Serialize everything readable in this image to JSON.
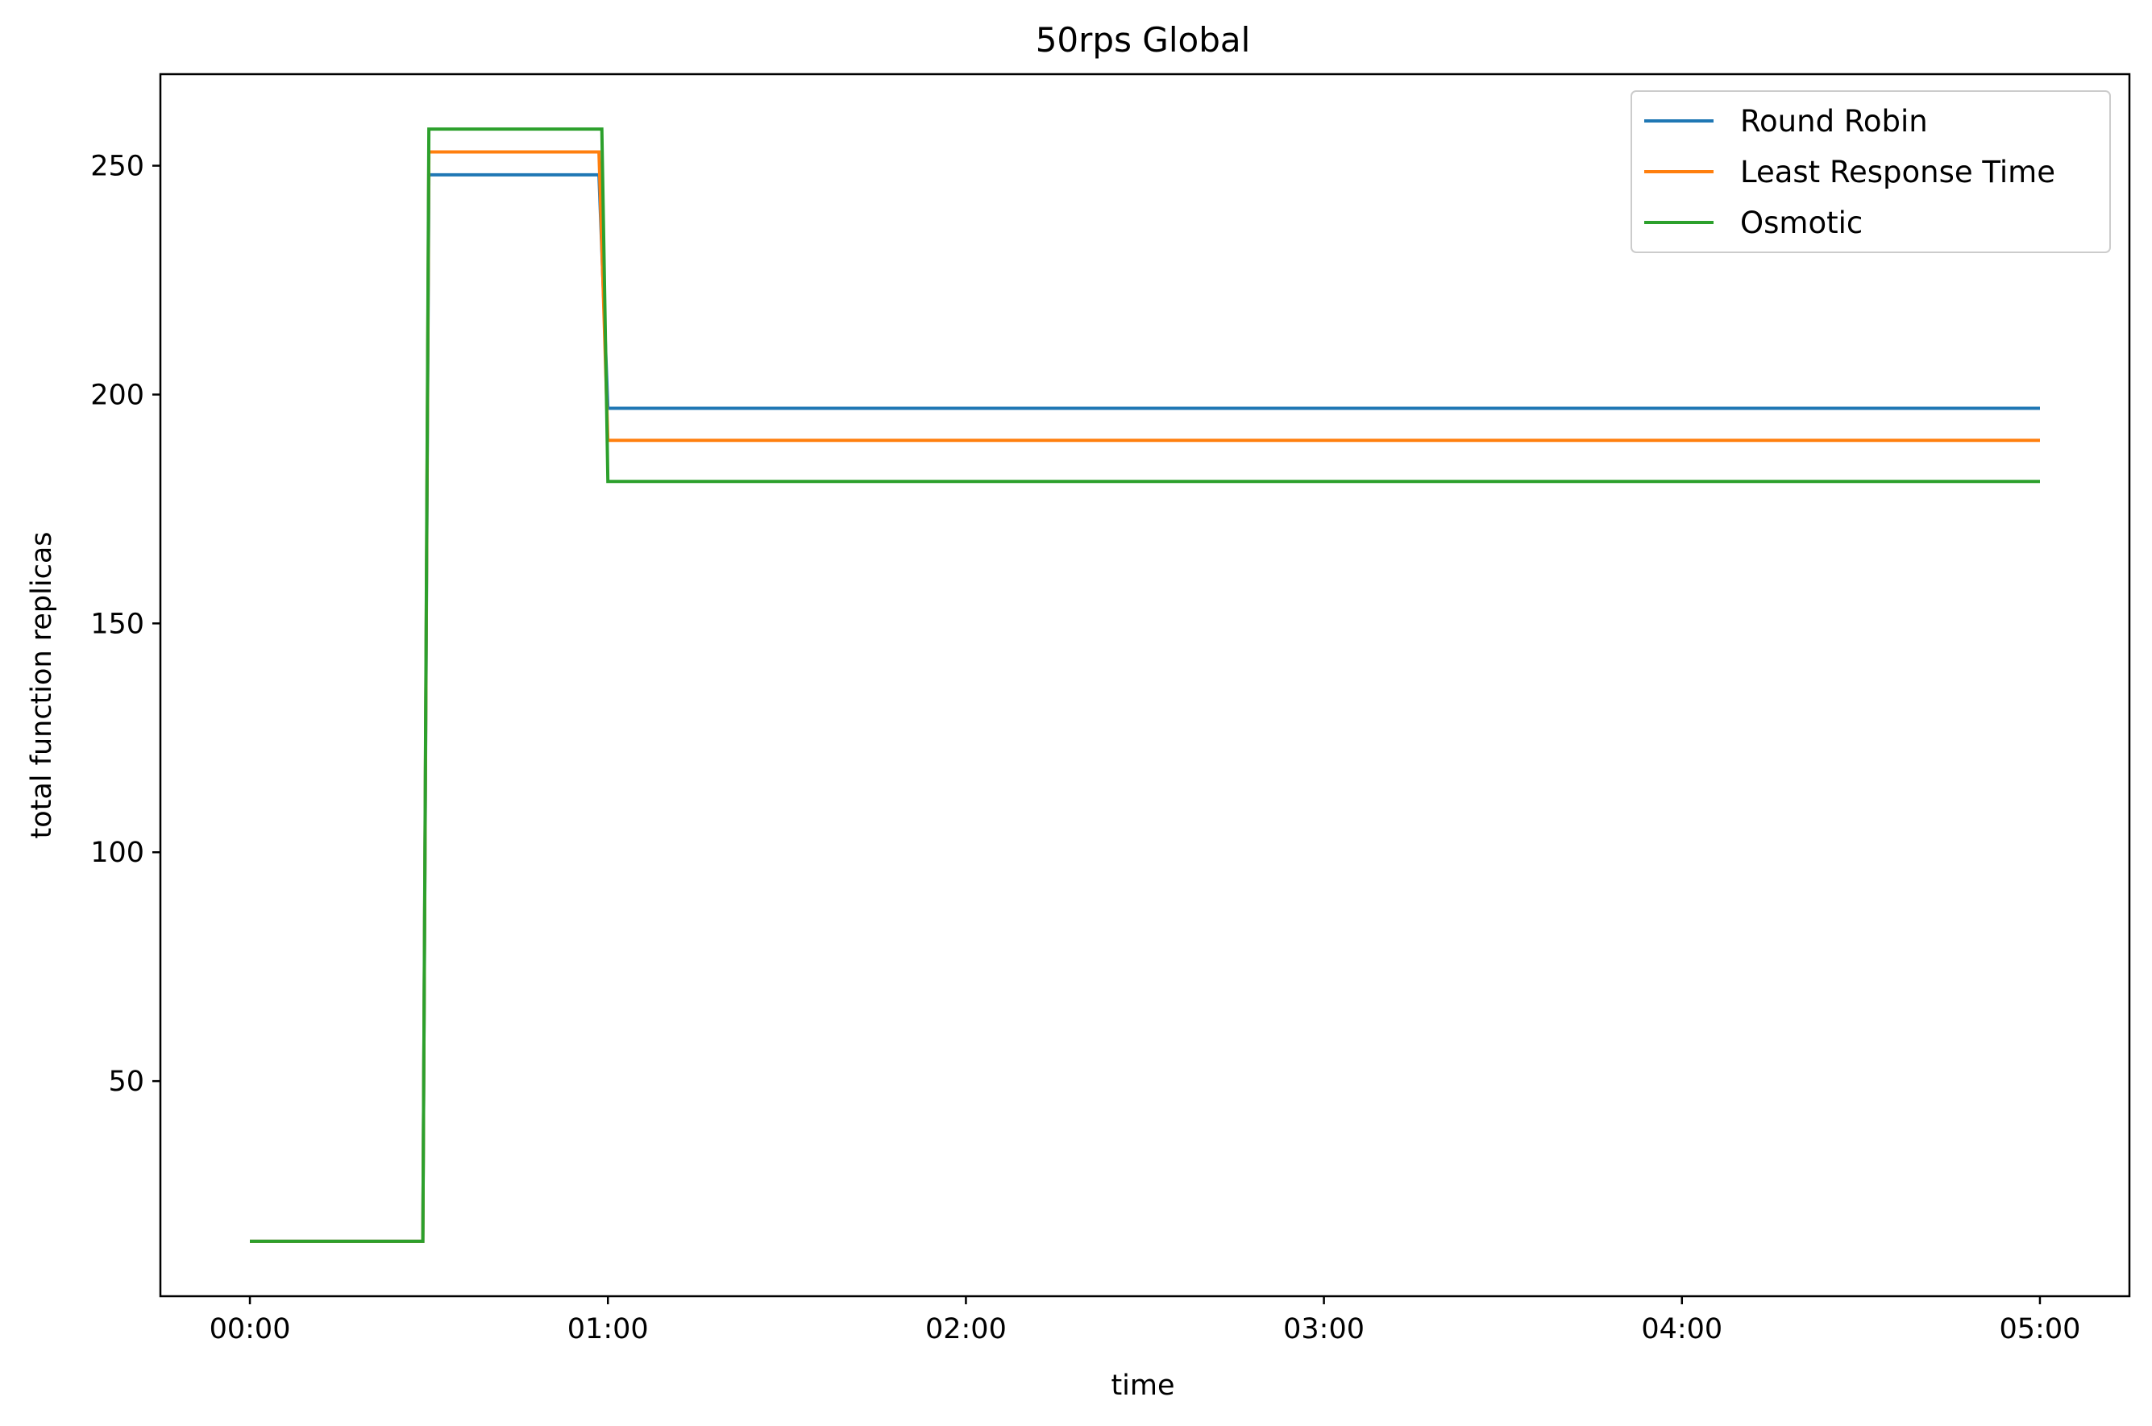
{
  "chart_data": {
    "type": "line",
    "title": "50rps Global",
    "xlabel": "time",
    "ylabel": "total function replicas",
    "x_unit": "minutes",
    "xlim": [
      -0.25,
      5.25
    ],
    "ylim": [
      3,
      270
    ],
    "x_ticks": [
      {
        "value": 0,
        "label": "00:00"
      },
      {
        "value": 1,
        "label": "01:00"
      },
      {
        "value": 2,
        "label": "02:00"
      },
      {
        "value": 3,
        "label": "03:00"
      },
      {
        "value": 4,
        "label": "04:00"
      },
      {
        "value": 5,
        "label": "05:00"
      }
    ],
    "y_ticks": [
      {
        "value": 50,
        "label": "50"
      },
      {
        "value": 100,
        "label": "100"
      },
      {
        "value": 150,
        "label": "150"
      },
      {
        "value": 200,
        "label": "200"
      },
      {
        "value": 250,
        "label": "250"
      }
    ],
    "grid": false,
    "legend_position": "top-right",
    "series": [
      {
        "name": "Round Robin",
        "color": "#1f77b4",
        "x": [
          0,
          0.483,
          0.5,
          0.975,
          1.0,
          5.0
        ],
        "y": [
          15,
          15,
          248,
          248,
          197,
          197
        ]
      },
      {
        "name": "Least Response Time",
        "color": "#ff7f0e",
        "x": [
          0,
          0.483,
          0.5,
          0.975,
          1.0,
          5.0
        ],
        "y": [
          15,
          15,
          253,
          253,
          190,
          190
        ]
      },
      {
        "name": "Osmotic",
        "color": "#2ca02c",
        "x": [
          0,
          0.483,
          0.5,
          0.983,
          1.0,
          5.0
        ],
        "y": [
          15,
          15,
          258,
          258,
          181,
          181
        ]
      }
    ]
  }
}
